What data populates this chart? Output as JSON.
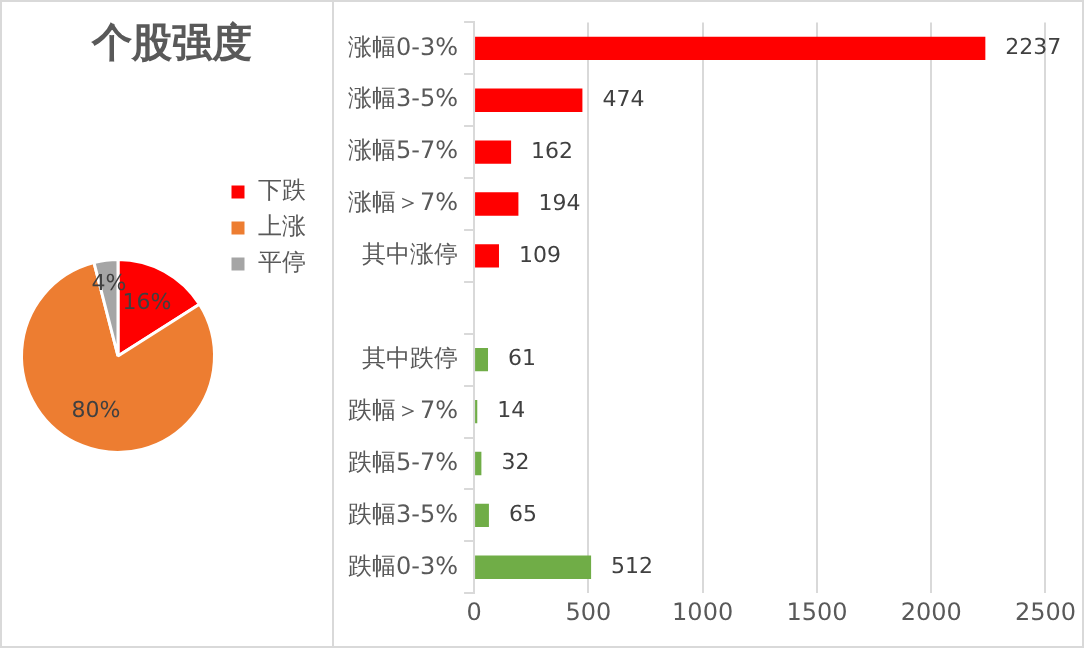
{
  "chart_data": [
    {
      "type": "pie",
      "title": "个股强度",
      "categories": [
        "下跌",
        "上涨",
        "平停"
      ],
      "values": [
        16,
        80,
        4
      ],
      "colors": [
        "#ff0000",
        "#ed7d31",
        "#a5a5a5"
      ],
      "legend": "right",
      "value_labels": [
        "16%",
        "80%",
        "4%"
      ]
    },
    {
      "type": "bar",
      "orientation": "horizontal",
      "categories": [
        "涨幅0-3%",
        "涨幅3-5%",
        "涨幅5-7%",
        "涨幅＞7%",
        "其中涨停",
        null,
        "其中跌停",
        "跌幅＞7%",
        "跌幅5-7%",
        "跌幅3-5%",
        "跌幅0-3%"
      ],
      "values": [
        2237,
        474,
        162,
        194,
        109,
        null,
        61,
        14,
        32,
        65,
        512
      ],
      "colors": [
        "#ff0000",
        "#ff0000",
        "#ff0000",
        "#ff0000",
        "#ff0000",
        "#ff0000",
        "#70ad47",
        "#70ad47",
        "#70ad47",
        "#70ad47",
        "#70ad47"
      ],
      "xlim": [
        0,
        2500
      ],
      "xticks": [
        0,
        500,
        1000,
        1500,
        2000,
        2500
      ],
      "grid": "x",
      "legend": false,
      "data_labels": true
    }
  ]
}
